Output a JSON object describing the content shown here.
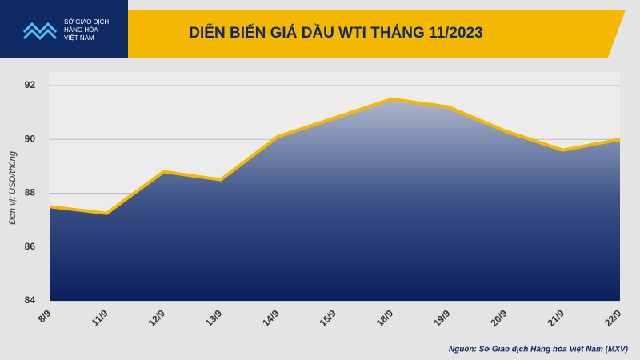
{
  "logo": {
    "lines": [
      "SỞ GIAO DỊCH",
      "HÀNG HÓA",
      "VIỆT NAM"
    ]
  },
  "chart_data": {
    "type": "area",
    "title": "DIỄN BIẾN GIÁ DẦU WTI THÁNG 11/2023",
    "y_label": "Đơn vị: USD/thùng",
    "source": "Nguồn: Sở Giao dịch Hàng hóa Việt Nam (MXV)",
    "categories": [
      "8/9",
      "11/9",
      "12/9",
      "13/9",
      "14/9",
      "15/9",
      "18/9",
      "19/9",
      "20/9",
      "21/9",
      "22/9"
    ],
    "values": [
      87.5,
      87.25,
      88.8,
      88.5,
      90.1,
      90.8,
      91.5,
      91.2,
      90.3,
      89.6,
      90.0
    ],
    "color": "#f5b800",
    "ylim": [
      84,
      92
    ],
    "yticks": [
      84,
      86,
      88,
      90,
      92
    ],
    "grid": true
  }
}
